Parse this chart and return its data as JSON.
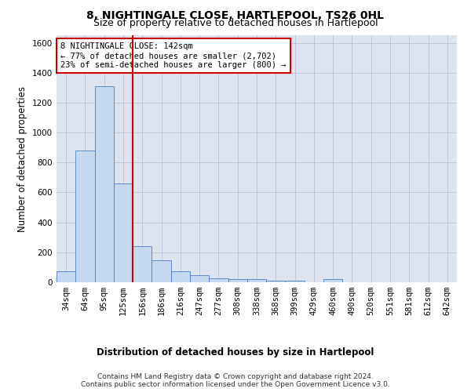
{
  "title": "8, NIGHTINGALE CLOSE, HARTLEPOOL, TS26 0HL",
  "subtitle": "Size of property relative to detached houses in Hartlepool",
  "xlabel": "Distribution of detached houses by size in Hartlepool",
  "ylabel": "Number of detached properties",
  "categories": [
    "34sqm",
    "64sqm",
    "95sqm",
    "125sqm",
    "156sqm",
    "186sqm",
    "216sqm",
    "247sqm",
    "277sqm",
    "308sqm",
    "338sqm",
    "368sqm",
    "399sqm",
    "429sqm",
    "460sqm",
    "490sqm",
    "520sqm",
    "551sqm",
    "581sqm",
    "612sqm",
    "642sqm"
  ],
  "values": [
    75,
    880,
    1310,
    660,
    240,
    145,
    75,
    45,
    25,
    20,
    20,
    10,
    10,
    0,
    20,
    0,
    0,
    0,
    0,
    0,
    0
  ],
  "bar_color": "#c5d9f1",
  "bar_edge_color": "#4f81bd",
  "vline_x_index": 3,
  "vline_color": "#cc0000",
  "annotation_text": "8 NIGHTINGALE CLOSE: 142sqm\n← 77% of detached houses are smaller (2,702)\n23% of semi-detached houses are larger (800) →",
  "annotation_box_color": "#ffffff",
  "annotation_box_edge_color": "#cc0000",
  "ylim": [
    0,
    1650
  ],
  "yticks": [
    0,
    200,
    400,
    600,
    800,
    1000,
    1200,
    1400,
    1600
  ],
  "footer_line1": "Contains HM Land Registry data © Crown copyright and database right 2024.",
  "footer_line2": "Contains public sector information licensed under the Open Government Licence v3.0.",
  "plot_bg_color": "#dde4f0",
  "title_fontsize": 10,
  "subtitle_fontsize": 9,
  "axis_label_fontsize": 8.5,
  "tick_fontsize": 7.5,
  "annotation_fontsize": 7.5,
  "footer_fontsize": 6.5
}
